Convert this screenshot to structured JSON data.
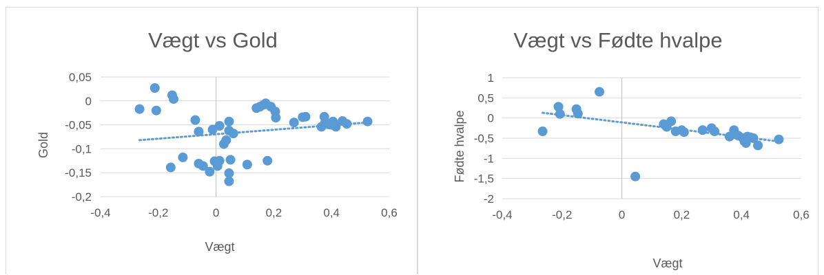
{
  "colors": {
    "series": "#5b9bd5",
    "grid": "#d9d9d9",
    "text": "#595959"
  },
  "chart_data": [
    {
      "type": "scatter",
      "title": "Vægt vs Gold",
      "xlabel": "Vægt",
      "ylabel": "Gold",
      "xlim": [
        -0.4,
        0.6
      ],
      "ylim": [
        -0.2,
        0.05
      ],
      "x_ticks": [
        "-0,4",
        "-0,2",
        "0",
        "0,2",
        "0,4",
        "0,6"
      ],
      "y_ticks": [
        "0,05",
        "0",
        "-0,05",
        "-0,1",
        "-0,15",
        "-0,2"
      ],
      "x_tick_values": [
        -0.4,
        -0.2,
        0,
        0.2,
        0.4,
        0.6
      ],
      "y_tick_values": [
        0.05,
        0,
        -0.05,
        -0.1,
        -0.15,
        -0.2
      ],
      "grid": "horizontal",
      "trendline": {
        "type": "linear",
        "x": [
          -0.265,
          0.525
        ],
        "y": [
          -0.082,
          -0.045
        ]
      },
      "points": [
        [
          -0.265,
          -0.017
        ],
        [
          -0.212,
          0.027
        ],
        [
          -0.207,
          -0.02
        ],
        [
          -0.152,
          0.012
        ],
        [
          -0.147,
          0.004
        ],
        [
          -0.157,
          -0.139
        ],
        [
          -0.115,
          -0.118
        ],
        [
          -0.072,
          -0.04
        ],
        [
          -0.06,
          -0.064
        ],
        [
          -0.06,
          -0.131
        ],
        [
          -0.045,
          -0.136
        ],
        [
          -0.022,
          -0.148
        ],
        [
          -0.012,
          -0.06
        ],
        [
          -0.005,
          -0.126
        ],
        [
          0.005,
          -0.136
        ],
        [
          0.012,
          -0.125
        ],
        [
          0.012,
          -0.052
        ],
        [
          0.027,
          -0.09
        ],
        [
          0.035,
          -0.082
        ],
        [
          0.045,
          -0.043
        ],
        [
          0.045,
          -0.062
        ],
        [
          0.045,
          -0.151
        ],
        [
          0.045,
          -0.168
        ],
        [
          0.05,
          -0.123
        ],
        [
          0.06,
          -0.068
        ],
        [
          0.108,
          -0.133
        ],
        [
          0.14,
          -0.015
        ],
        [
          0.152,
          -0.012
        ],
        [
          0.165,
          -0.008
        ],
        [
          0.172,
          -0.005
        ],
        [
          0.178,
          -0.125
        ],
        [
          0.19,
          -0.012
        ],
        [
          0.205,
          -0.022
        ],
        [
          0.207,
          -0.035
        ],
        [
          0.27,
          -0.045
        ],
        [
          0.3,
          -0.034
        ],
        [
          0.31,
          -0.033
        ],
        [
          0.365,
          -0.054
        ],
        [
          0.375,
          -0.033
        ],
        [
          0.378,
          -0.045
        ],
        [
          0.39,
          -0.049
        ],
        [
          0.4,
          -0.05
        ],
        [
          0.405,
          -0.043
        ],
        [
          0.41,
          -0.05
        ],
        [
          0.415,
          -0.054
        ],
        [
          0.438,
          -0.042
        ],
        [
          0.453,
          -0.048
        ],
        [
          0.525,
          -0.043
        ]
      ]
    },
    {
      "type": "scatter",
      "title": "Vægt vs Fødte hvalpe",
      "xlabel": "Vægt",
      "ylabel": "Fødte hvalpe",
      "xlim": [
        -0.4,
        0.6
      ],
      "ylim": [
        -2,
        1
      ],
      "x_ticks": [
        "-0,4",
        "-0,2",
        "0",
        "0,2",
        "0,4",
        "0,6"
      ],
      "y_ticks": [
        "1",
        "0,5",
        "0",
        "-0,5",
        "-1",
        "-1,5",
        "-2"
      ],
      "x_tick_values": [
        -0.4,
        -0.2,
        0,
        0.2,
        0.4,
        0.6
      ],
      "y_tick_values": [
        1,
        0.5,
        0,
        -0.5,
        -1,
        -1.5,
        -2
      ],
      "grid": "horizontal",
      "trendline": {
        "type": "linear",
        "x": [
          -0.265,
          0.525
        ],
        "y": [
          0.13,
          -0.58
        ]
      },
      "points": [
        [
          -0.265,
          -0.33
        ],
        [
          -0.212,
          0.28
        ],
        [
          -0.207,
          0.1
        ],
        [
          -0.152,
          0.22
        ],
        [
          -0.147,
          0.11
        ],
        [
          -0.075,
          0.65
        ],
        [
          0.045,
          -1.45
        ],
        [
          0.14,
          -0.15
        ],
        [
          0.15,
          -0.22
        ],
        [
          0.165,
          -0.08
        ],
        [
          0.18,
          -0.33
        ],
        [
          0.2,
          -0.3
        ],
        [
          0.208,
          -0.35
        ],
        [
          0.27,
          -0.3
        ],
        [
          0.3,
          -0.25
        ],
        [
          0.31,
          -0.33
        ],
        [
          0.36,
          -0.46
        ],
        [
          0.375,
          -0.3
        ],
        [
          0.38,
          -0.4
        ],
        [
          0.39,
          -0.44
        ],
        [
          0.405,
          -0.5
        ],
        [
          0.41,
          -0.58
        ],
        [
          0.415,
          -0.62
        ],
        [
          0.42,
          -0.46
        ],
        [
          0.43,
          -0.48
        ],
        [
          0.44,
          -0.5
        ],
        [
          0.455,
          -0.68
        ],
        [
          0.525,
          -0.53
        ]
      ]
    }
  ]
}
